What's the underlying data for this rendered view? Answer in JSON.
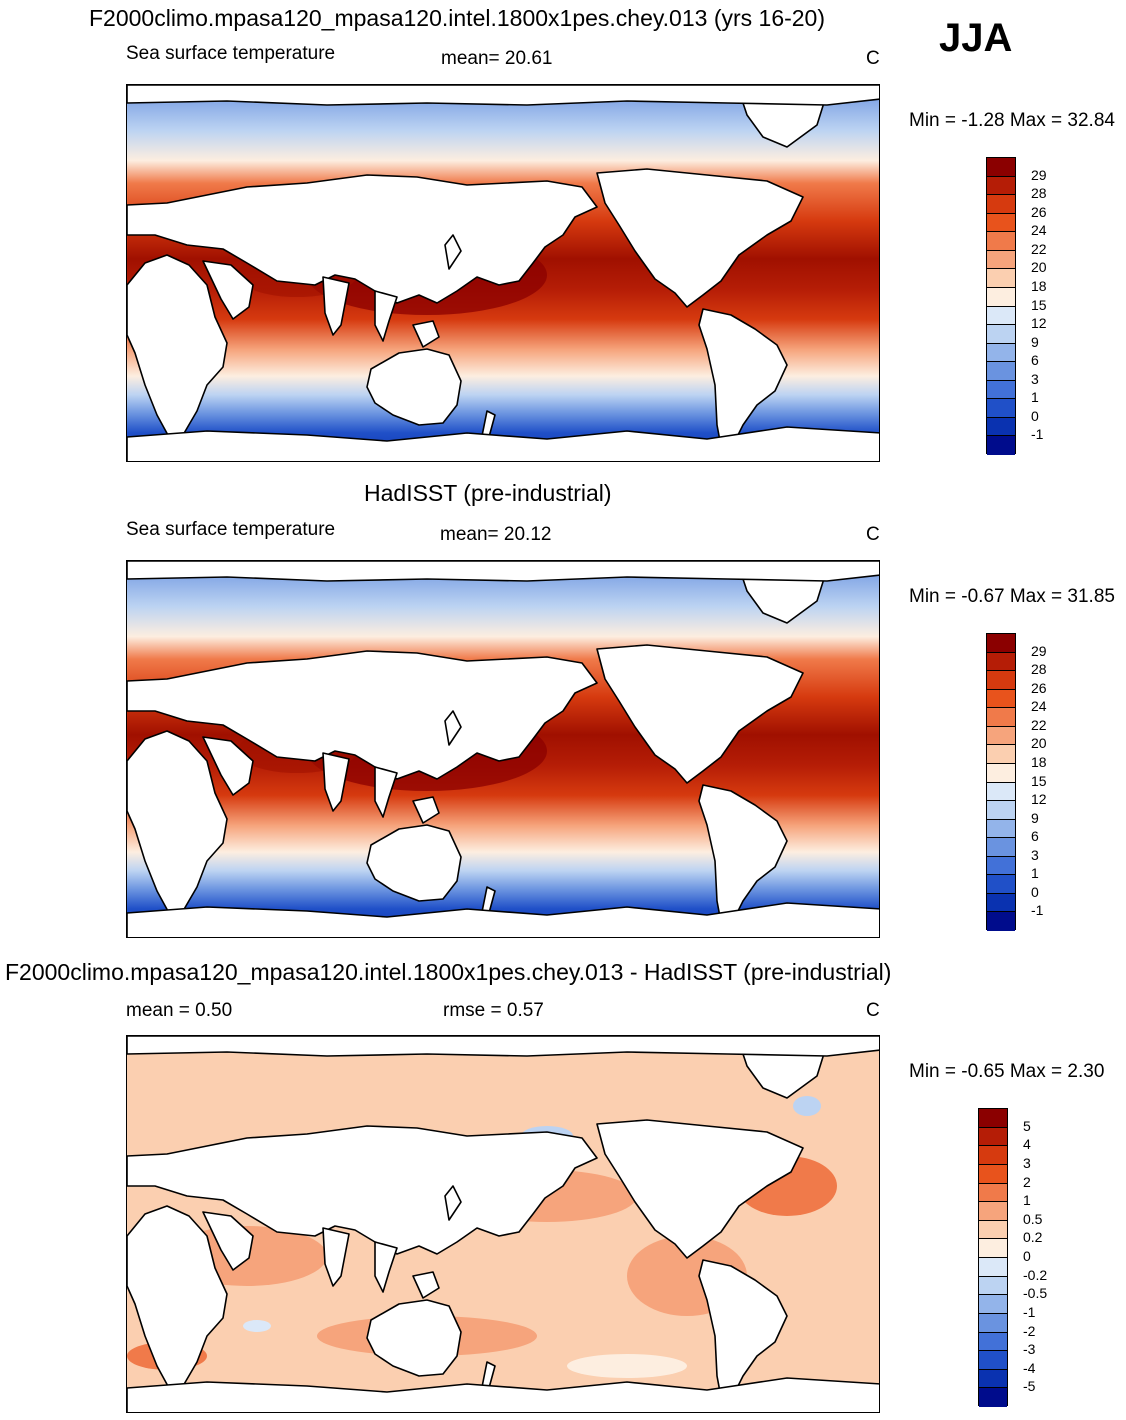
{
  "season": "JJA",
  "panels": [
    {
      "title": "F2000climo.mpasa120_mpasa120.intel.1800x1pes.chey.013 (yrs 16-20)",
      "left_label": "Sea surface temperature",
      "mid_label": "mean=  20.61",
      "units": "C",
      "minmax": "Min =  -1.28 Max =  32.84"
    },
    {
      "title": "HadISST (pre-industrial)",
      "left_label": "Sea surface temperature",
      "mid_label": "mean=  20.12",
      "units": "C",
      "minmax": "Min =  -0.67 Max =  31.85"
    },
    {
      "title": "F2000climo.mpasa120_mpasa120.intel.1800x1pes.chey.013 - HadISST (pre-industrial)",
      "left_label": "mean =    0.50",
      "mid_label": "rmse =    0.57",
      "units": "C",
      "minmax": "Min =  -0.65 Max =    2.30"
    }
  ],
  "chart_data": [
    {
      "type": "heatmap",
      "title": "F2000climo.mpasa120_mpasa120.intel.1800x1pes.chey.013 (yrs 16-20)",
      "variable": "Sea surface temperature",
      "units": "C",
      "mean": 20.61,
      "min": -1.28,
      "max": 32.84,
      "colorbar_levels": [
        "29",
        "28",
        "26",
        "24",
        "22",
        "20",
        "18",
        "15",
        "12",
        "9",
        "6",
        "3",
        "1",
        "0",
        "-1"
      ],
      "colorbar_colors": [
        "#8b0000",
        "#b51d06",
        "#d63a0f",
        "#e8531c",
        "#f07a4a",
        "#f6a47c",
        "#fbcfb0",
        "#fdeee0",
        "#dbe8f8",
        "#bcd3f2",
        "#93b4ea",
        "#6a93e0",
        "#4271d8",
        "#2050c8",
        "#0a32b0",
        "#000c8c"
      ]
    },
    {
      "type": "heatmap",
      "title": "HadISST (pre-industrial)",
      "variable": "Sea surface temperature",
      "units": "C",
      "mean": 20.12,
      "min": -0.67,
      "max": 31.85,
      "colorbar_levels": [
        "29",
        "28",
        "26",
        "24",
        "22",
        "20",
        "18",
        "15",
        "12",
        "9",
        "6",
        "3",
        "1",
        "0",
        "-1"
      ],
      "colorbar_colors": [
        "#8b0000",
        "#b51d06",
        "#d63a0f",
        "#e8531c",
        "#f07a4a",
        "#f6a47c",
        "#fbcfb0",
        "#fdeee0",
        "#dbe8f8",
        "#bcd3f2",
        "#93b4ea",
        "#6a93e0",
        "#4271d8",
        "#2050c8",
        "#0a32b0",
        "#000c8c"
      ]
    },
    {
      "type": "heatmap",
      "title": "F2000climo.mpasa120_mpasa120.intel.1800x1pes.chey.013 - HadISST (pre-industrial)",
      "units": "C",
      "mean": 0.5,
      "rmse": 0.57,
      "min": -0.65,
      "max": 2.3,
      "colorbar_levels": [
        "5",
        "4",
        "3",
        "2",
        "1",
        "0.5",
        "0.2",
        "0",
        "-0.2",
        "-0.5",
        "-1",
        "-2",
        "-3",
        "-4",
        "-5"
      ],
      "colorbar_colors": [
        "#8b0000",
        "#b51d06",
        "#d63a0f",
        "#e8531c",
        "#f07a4a",
        "#f6a47c",
        "#fbcfb0",
        "#fdeee0",
        "#dbe8f8",
        "#bcd3f2",
        "#93b4ea",
        "#6a93e0",
        "#4271d8",
        "#2050c8",
        "#0a32b0",
        "#000c8c"
      ]
    }
  ]
}
